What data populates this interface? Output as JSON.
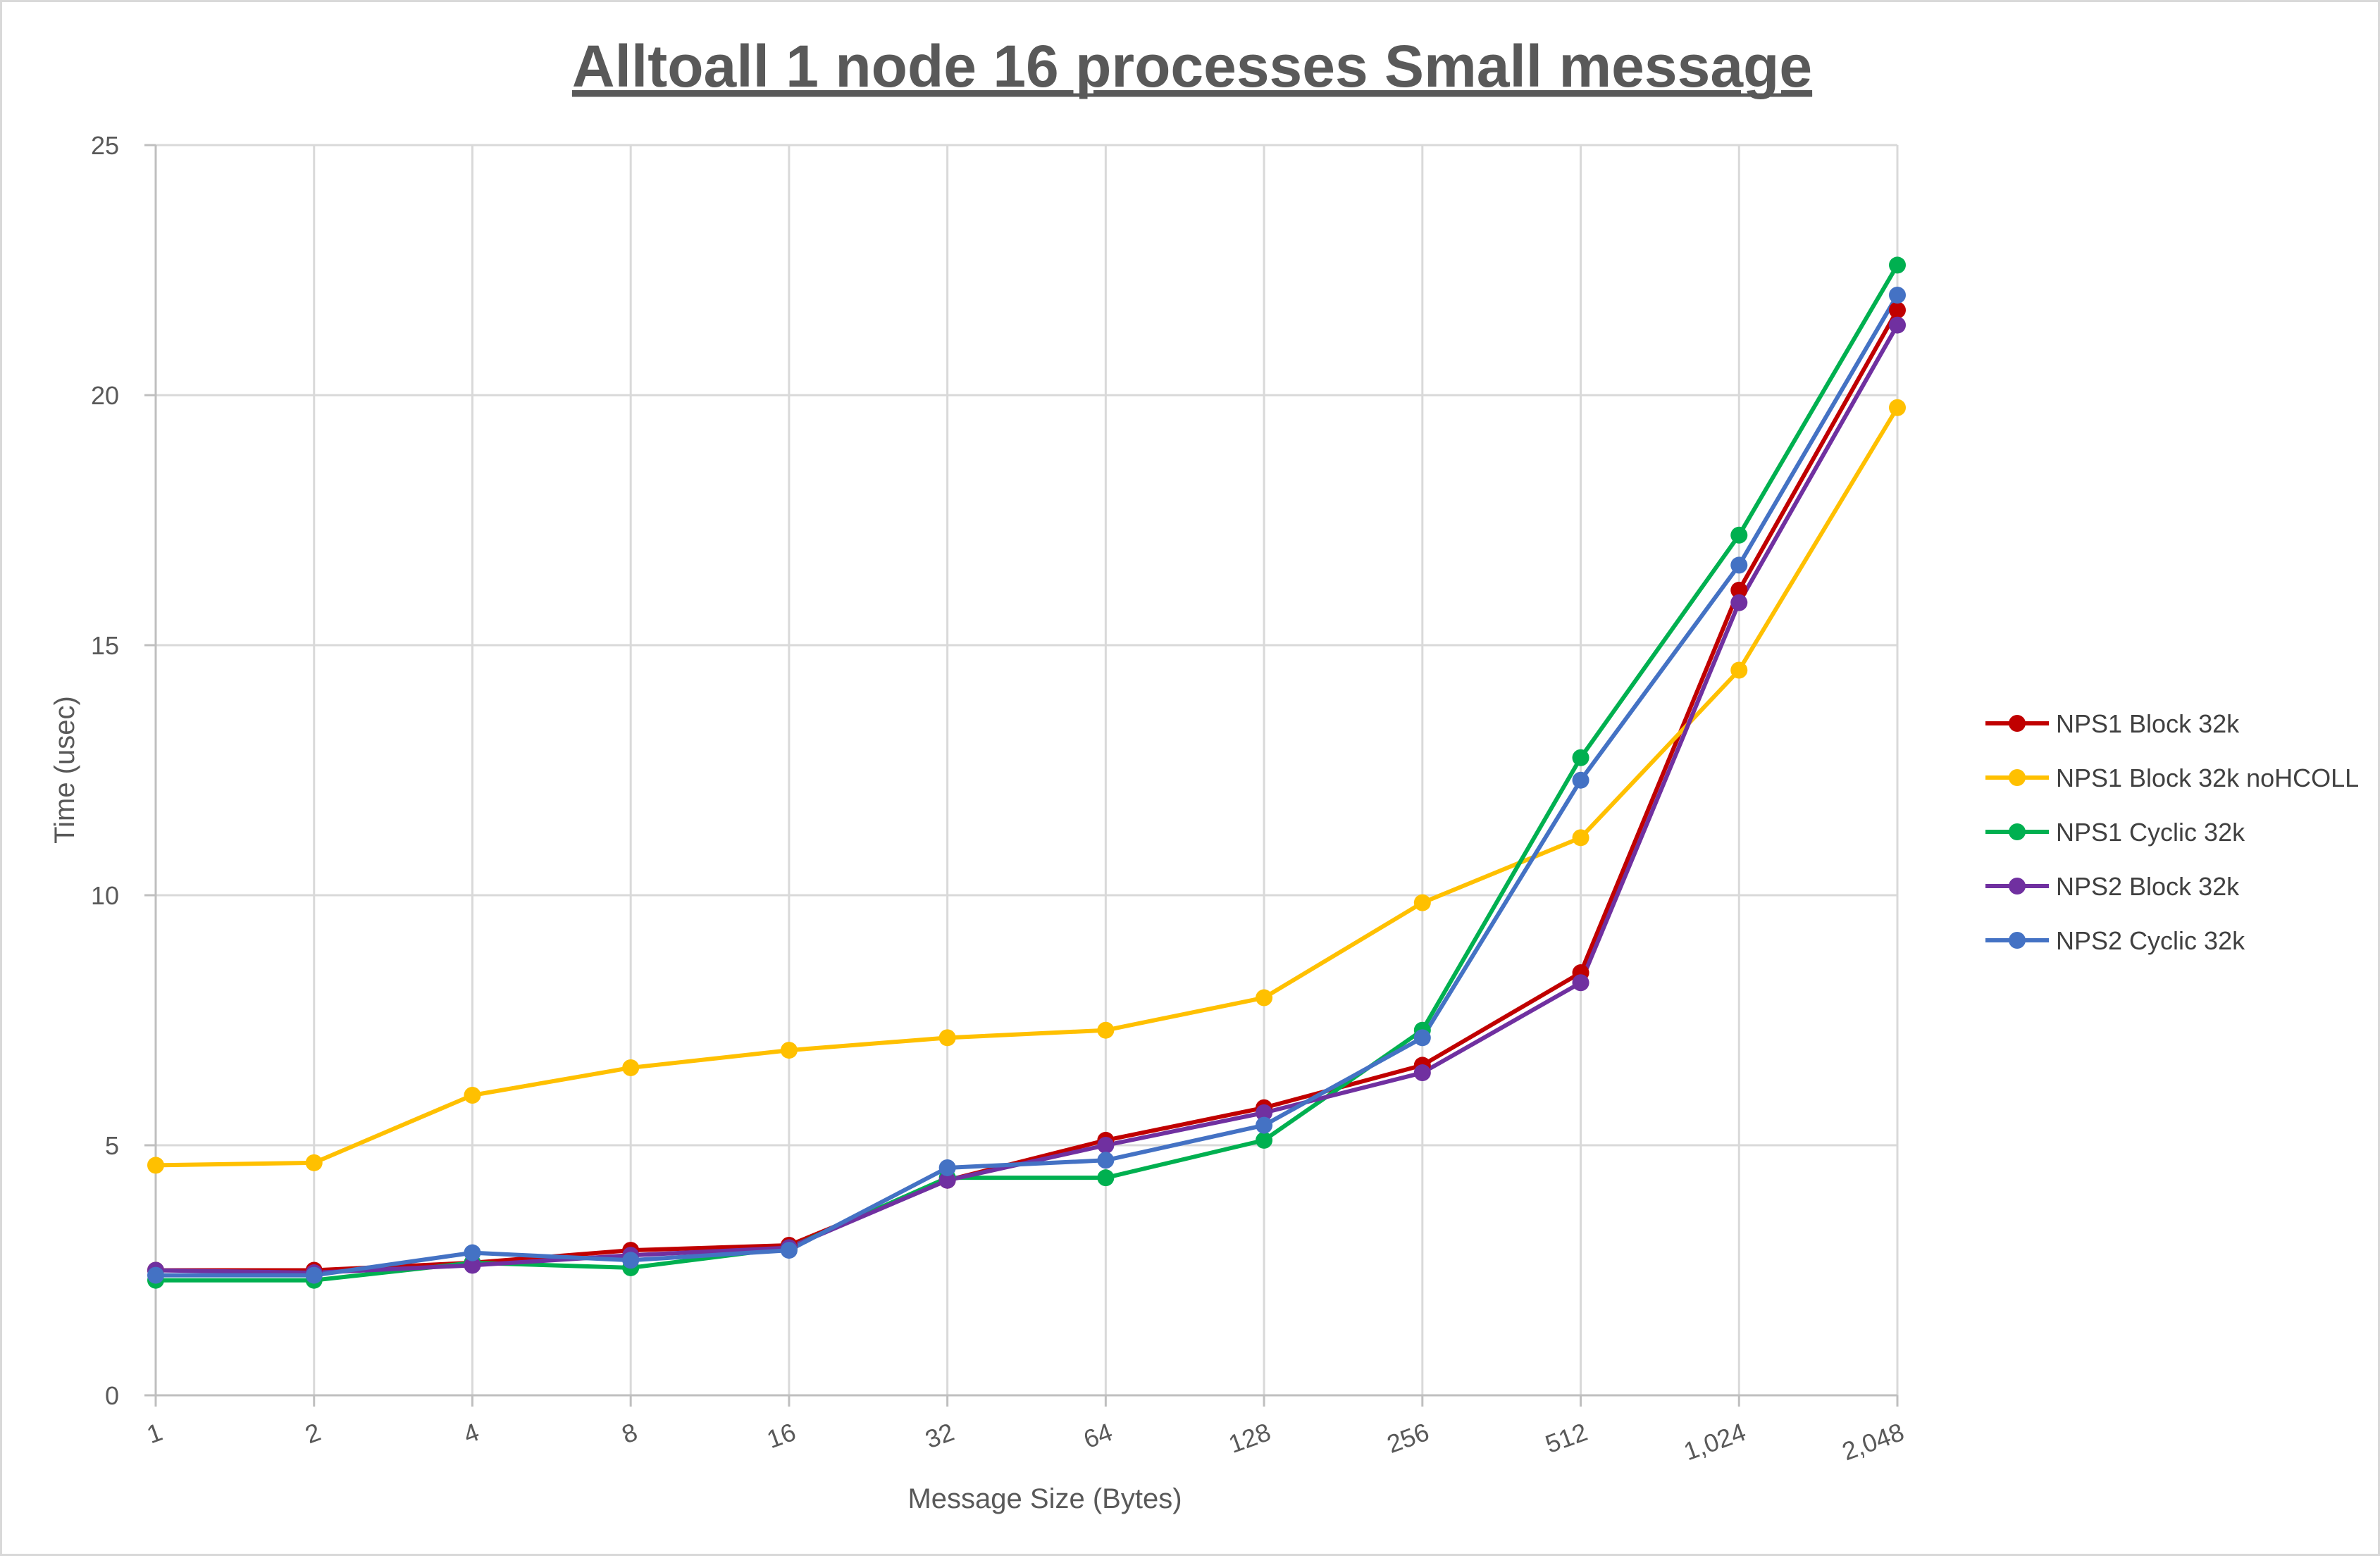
{
  "chart_data": {
    "type": "line",
    "title": "Alltoall 1 node 16 processes Small message",
    "xlabel": "Message Size (Bytes)",
    "ylabel": "Time (usec)",
    "categories": [
      "1",
      "2",
      "4",
      "8",
      "16",
      "32",
      "64",
      "128",
      "256",
      "512",
      "1,024",
      "2,048"
    ],
    "ylim": [
      0,
      25
    ],
    "yticks": [
      "0",
      "5",
      "10",
      "15",
      "20",
      "25"
    ],
    "grid": true,
    "legend_position": "right",
    "series": [
      {
        "name": "NPS1 Block 32k",
        "color": "#c00000",
        "values": [
          2.5,
          2.5,
          2.65,
          2.9,
          3.0,
          4.3,
          5.1,
          5.75,
          6.6,
          8.45,
          16.1,
          21.7
        ]
      },
      {
        "name": "NPS1 Block 32k noHCOLL",
        "color": "#ffc000",
        "values": [
          4.6,
          4.65,
          6.0,
          6.55,
          6.9,
          7.15,
          7.3,
          7.95,
          9.85,
          11.15,
          14.5,
          19.75
        ]
      },
      {
        "name": "NPS1 Cyclic 32k",
        "color": "#00b050",
        "values": [
          2.3,
          2.3,
          2.65,
          2.55,
          2.95,
          4.35,
          4.35,
          5.1,
          7.3,
          12.75,
          17.2,
          22.6
        ]
      },
      {
        "name": "NPS2 Block 32k",
        "color": "#7030a0",
        "values": [
          2.5,
          2.45,
          2.6,
          2.8,
          2.95,
          4.3,
          5.0,
          5.65,
          6.45,
          8.25,
          15.85,
          21.4
        ]
      },
      {
        "name": "NPS2 Cyclic 32k",
        "color": "#4472c4",
        "values": [
          2.4,
          2.4,
          2.85,
          2.7,
          2.9,
          4.55,
          4.7,
          5.4,
          7.15,
          12.3,
          16.6,
          22.0
        ]
      }
    ]
  }
}
